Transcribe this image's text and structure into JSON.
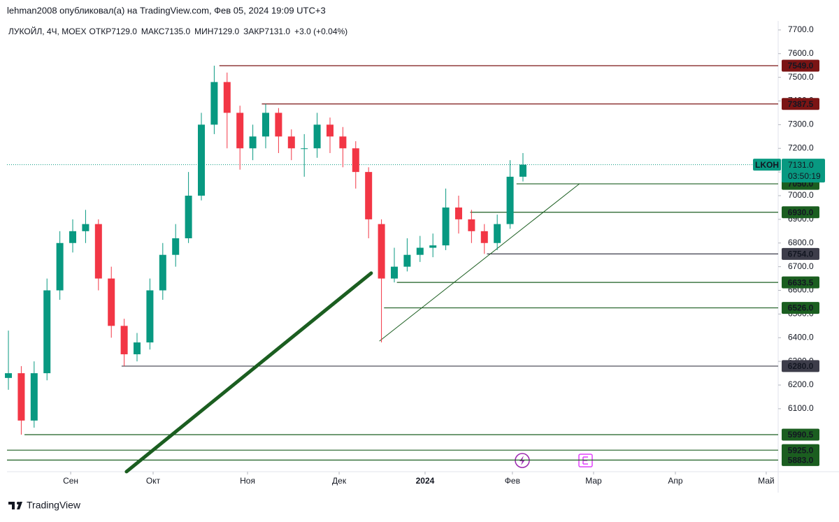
{
  "header": "lehman2008 опубликовал(а) на TradingView.com, Фев 05, 2024 19:09 UTC+3",
  "footer": "TradingView",
  "chart_data": {
    "type": "candlestick",
    "symbol": "ЛУКОЙЛ, 4Ч, MOEX",
    "ohlc_legend": [
      {
        "label": "ОТКР",
        "value": "7129.0"
      },
      {
        "label": "МАКС",
        "value": "7135.0"
      },
      {
        "label": "МИН",
        "value": "7129.0"
      },
      {
        "label": "ЗАКР",
        "value": "7131.0"
      }
    ],
    "change": "+3.0 (+0.04%)",
    "x": [
      0,
      1,
      2,
      3,
      4,
      5,
      6,
      7,
      8,
      9,
      10,
      11,
      12,
      13,
      14,
      15,
      16,
      17,
      18,
      19,
      20,
      21,
      22,
      23,
      24,
      25,
      26,
      27,
      28,
      29,
      30,
      31,
      32,
      33,
      34,
      35,
      36,
      37,
      38,
      39,
      40
    ],
    "open": [
      6230,
      6250,
      6050,
      6250,
      6600,
      6800,
      6850,
      6880,
      6650,
      6450,
      6330,
      6380,
      6600,
      6750,
      6820,
      7000,
      7300,
      7480,
      7350,
      7200,
      7250,
      7350,
      7250,
      7200,
      7200,
      7300,
      7250,
      7200,
      7100,
      6880,
      6650,
      6700,
      6750,
      6780,
      6790,
      6950,
      6900,
      6850,
      6800,
      6880,
      7080
    ],
    "high": [
      6430,
      6280,
      6300,
      6650,
      6850,
      6900,
      6940,
      6900,
      6700,
      6480,
      6420,
      6650,
      6800,
      6880,
      7100,
      7350,
      7549,
      7520,
      7380,
      7300,
      7387.5,
      7370,
      7280,
      7260,
      7350,
      7330,
      7290,
      7230,
      7120,
      6900,
      6780,
      6820,
      6830,
      6840,
      7030,
      7000,
      6940,
      6880,
      6920,
      7150,
      7180
    ],
    "low": [
      6180,
      5990.5,
      6020,
      6220,
      6560,
      6760,
      6800,
      6600,
      6400,
      6280,
      6300,
      6350,
      6560,
      6700,
      6800,
      6980,
      7260,
      7200,
      7110,
      7150,
      7200,
      7180,
      7150,
      7080,
      7160,
      7180,
      7120,
      7030,
      6820,
      6380,
      6633.5,
      6680,
      6720,
      6740,
      6770,
      6840,
      6800,
      6754,
      6770,
      6860,
      7060
    ],
    "close": [
      6250,
      6050,
      6250,
      6600,
      6800,
      6850,
      6880,
      6650,
      6450,
      6330,
      6380,
      6600,
      6750,
      6820,
      7000,
      7300,
      7480,
      7350,
      7200,
      7250,
      7350,
      7250,
      7200,
      7200,
      7300,
      7250,
      7200,
      7100,
      6900,
      6650,
      6700,
      6750,
      6780,
      6790,
      6950,
      6900,
      6850,
      6800,
      6880,
      7080,
      7131
    ],
    "up_color": "#089981",
    "down_color": "#f23645",
    "xlim": [
      -0.11,
      59.84
    ],
    "xticks": [
      {
        "value": 4.84,
        "label": "Сен"
      },
      {
        "value": 11.25,
        "label": "Окт"
      },
      {
        "value": 18.59,
        "label": "Ноя"
      },
      {
        "value": 25.71,
        "label": "Дек"
      },
      {
        "value": 32.39,
        "label": "2024"
      },
      {
        "value": 39.18,
        "label": "Фев"
      },
      {
        "value": 45.49,
        "label": "Мар"
      },
      {
        "value": 51.85,
        "label": "Апр"
      },
      {
        "value": 58.91,
        "label": "Май"
      }
    ],
    "ylim": [
      5834,
      7738
    ],
    "yticks": [
      {
        "value": 6100,
        "label": "6100.0"
      },
      {
        "value": 6200,
        "label": "6200.0"
      },
      {
        "value": 6300,
        "label": "6300.0"
      },
      {
        "value": 6400,
        "label": "6400.0"
      },
      {
        "value": 6500,
        "label": "6500.0"
      },
      {
        "value": 6600,
        "label": "6600.0"
      },
      {
        "value": 6700,
        "label": "6700.0"
      },
      {
        "value": 6800,
        "label": "6800.0"
      },
      {
        "value": 6900,
        "label": "6900.0"
      },
      {
        "value": 7000,
        "label": "7000.0"
      },
      {
        "value": 7100,
        "label": "7100.0"
      },
      {
        "value": 7200,
        "label": "7200.0"
      },
      {
        "value": 7300,
        "label": "7300.0"
      },
      {
        "value": 7400,
        "label": "7400.0"
      },
      {
        "value": 7500,
        "label": "7500.0"
      },
      {
        "value": 7600,
        "label": "7600.0"
      },
      {
        "value": 7700,
        "label": "7700.0"
      }
    ],
    "levels": [
      {
        "value": 7549,
        "label": "7549.0",
        "start": 16.4,
        "color": "#7b1414"
      },
      {
        "value": 7387.5,
        "label": "7387.5",
        "start": 19.7,
        "color": "#7b1414"
      },
      {
        "value": 7050,
        "label": "7050.0",
        "start": 39.5,
        "color": "#1b5e20"
      },
      {
        "value": 6930,
        "label": "6930.0",
        "start": 35.9,
        "color": "#1b5e20"
      },
      {
        "value": 6754,
        "label": "6754.0",
        "start": 37.2,
        "color": "#3d3d4a"
      },
      {
        "value": 6633.5,
        "label": "6633.5",
        "start": 30.2,
        "color": "#1b5e20"
      },
      {
        "value": 6526,
        "label": "6526.0",
        "start": 29.2,
        "color": "#1b5e20"
      },
      {
        "value": 6280,
        "label": "6280.0",
        "start": 8.8,
        "color": "#3d3d4a"
      },
      {
        "value": 5990.5,
        "label": "5990.5",
        "start": 1.25,
        "color": "#1b5e20"
      },
      {
        "value": 5925,
        "label": "5925.0",
        "start": -0.11,
        "color": "#1b5e20"
      },
      {
        "value": 5883,
        "label": "5883.0",
        "start": -0.11,
        "color": "#1b5e20"
      }
    ],
    "trendlines": [
      {
        "x": [
          9.18,
          28.2
        ],
        "y": [
          5834.3,
          6672.7
        ],
        "color": "#1b5e20",
        "width": 5
      },
      {
        "x": [
          28.86,
          44.4
        ],
        "y": [
          6386.3,
          7050.5
        ],
        "color": "#1b5e20",
        "width": 1
      }
    ],
    "last_price": {
      "ticker": "LKOH",
      "value": 7131,
      "label": "7131.0",
      "countdown": "03:50:19",
      "color": "#089981"
    }
  }
}
